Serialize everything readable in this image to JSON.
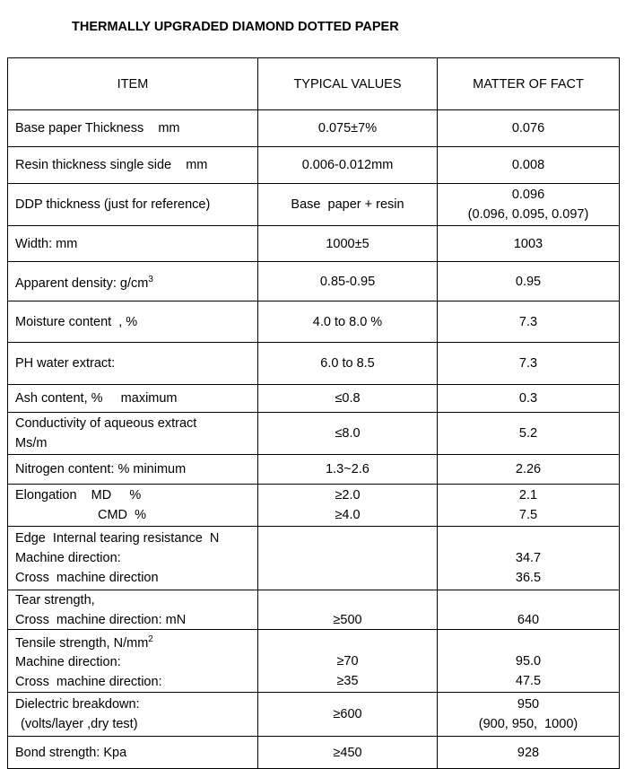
{
  "header": {
    "title": "THERMALLY UPGRADED DIAMOND DOTTED PAPER"
  },
  "table": {
    "columns": [
      "ITEM",
      "TYPICAL VALUES",
      "MATTER OF  FACT"
    ],
    "rows": [
      {
        "item": [
          "Base paper Thickness    mm"
        ],
        "typical": [
          "0.075±7%"
        ],
        "fact": [
          "0.076"
        ]
      },
      {
        "item": [
          "Resin thickness single side    mm"
        ],
        "typical": [
          "0.006-0.012mm"
        ],
        "fact": [
          "0.008"
        ]
      },
      {
        "item": [
          "DDP thickness (just for reference)"
        ],
        "typical": [
          "Base  paper + resin"
        ],
        "fact": [
          "0.096",
          "(0.096, 0.095, 0.097)"
        ]
      },
      {
        "item": [
          "Width: mm"
        ],
        "typical": [
          "1000±5"
        ],
        "fact": [
          "1003"
        ]
      },
      {
        "item": [
          {
            "text": "Apparent density: g/cm",
            "sup": "3"
          }
        ],
        "typical": [
          "0.85-0.95"
        ],
        "fact": [
          "0.95"
        ]
      },
      {
        "item": [
          "Moisture content  , %"
        ],
        "typical": [
          "4.0 to 8.0 %"
        ],
        "fact": [
          "7.3"
        ]
      },
      {
        "item": [
          "PH water extract:"
        ],
        "typical": [
          "6.0 to 8.5"
        ],
        "fact": [
          "7.3"
        ]
      },
      {
        "item": [
          "Ash content, %     maximum"
        ],
        "typical": [
          "≤0.8"
        ],
        "fact": [
          "0.3"
        ]
      },
      {
        "item": [
          "Conductivity of aqueous extract",
          "Ms/m"
        ],
        "typical": [
          "≤8.0"
        ],
        "fact": [
          "5.2"
        ]
      },
      {
        "item": [
          "Nitrogen content: % minimum"
        ],
        "typical": [
          "1.3~2.6"
        ],
        "fact": [
          "2.26"
        ]
      },
      {
        "item": [
          "Elongation    MD     %",
          "CMD  %"
        ],
        "typical": [
          "≥2.0",
          "≥4.0"
        ],
        "fact": [
          "2.1",
          "7.5"
        ]
      },
      {
        "item": [
          "Edge  Internal tearing resistance  N",
          "Machine direction:",
          "Cross  machine direction"
        ],
        "typical": [],
        "fact": [
          null,
          "34.7",
          "36.5"
        ]
      },
      {
        "item": [
          "Tear strength,",
          "Cross  machine direction: mN"
        ],
        "typical": [
          null,
          "≥500"
        ],
        "fact": [
          null,
          "640"
        ]
      },
      {
        "item": [
          {
            "text": "Tensile strength, N/mm",
            "sup": "2"
          },
          "Machine direction:",
          "Cross  machine direction:"
        ],
        "typical": [
          null,
          "≥70",
          "≥35"
        ],
        "fact": [
          null,
          "95.0",
          "47.5"
        ]
      },
      {
        "item": [
          "Dielectric breakdown:",
          "(volts/layer ,dry test)"
        ],
        "typical": [
          "≥600"
        ],
        "fact": [
          "950",
          "(900, 950,  1000)"
        ]
      },
      {
        "item": [
          "Bond strength: Kpa"
        ],
        "typical": [
          "≥450"
        ],
        "fact": [
          "928"
        ]
      }
    ]
  }
}
